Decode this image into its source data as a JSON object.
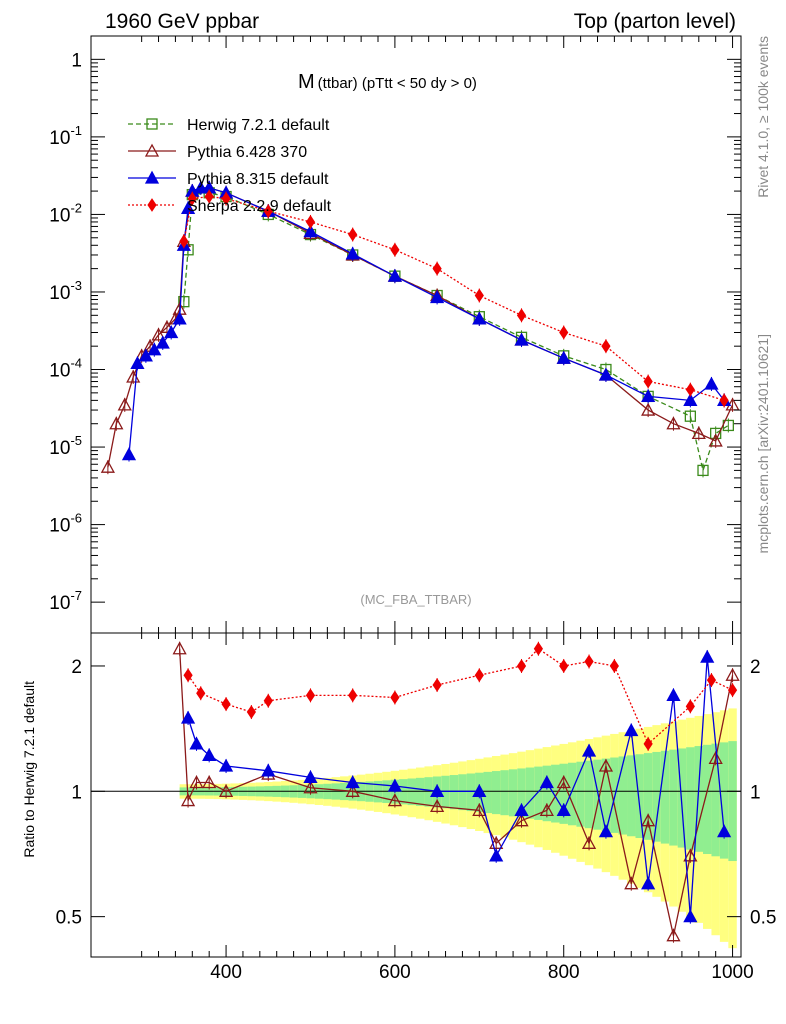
{
  "header": {
    "left": "1960 GeV ppbar",
    "right": "Top (parton level)"
  },
  "side_labels": {
    "rivet": "Rivet 4.1.0, ≥ 100k events",
    "mcplots": "mcplots.cern.ch [arXiv:2401.10621]"
  },
  "chart_data": [
    {
      "type": "line",
      "panel": "main",
      "title_main": "M",
      "title_sub": "(ttbar) (pTtt < 50 dy > 0)",
      "watermark": "(MC_FBA_TTBAR)",
      "yscale": "log",
      "xlim": [
        240,
        1010
      ],
      "ylim": [
        4e-08,
        2
      ],
      "y_ticks": [
        {
          "value": 1,
          "label": "1"
        },
        {
          "value": 0.1,
          "label": "10^-1"
        },
        {
          "value": 0.01,
          "label": "10^-2"
        },
        {
          "value": 0.001,
          "label": "10^-3"
        },
        {
          "value": 0.0001,
          "label": "10^-4"
        },
        {
          "value": 1e-05,
          "label": "10^-5"
        },
        {
          "value": 1e-06,
          "label": "10^-6"
        },
        {
          "value": 1e-07,
          "label": "10^-7"
        }
      ],
      "legend_position": "top-left",
      "series": [
        {
          "name": "Herwig 7.2.1 default",
          "color": "#3a8a1a",
          "marker": "open-square",
          "line": "dashed",
          "x": [
            350,
            355,
            360,
            380,
            400,
            450,
            500,
            550,
            600,
            650,
            700,
            750,
            800,
            850,
            900,
            950,
            965,
            980,
            995
          ],
          "y": [
            0.00075,
            0.0035,
            0.018,
            0.019,
            0.017,
            0.01,
            0.0055,
            0.003,
            0.0016,
            0.0009,
            0.00048,
            0.00026,
            0.00015,
            0.0001,
            4.5e-05,
            2.5e-05,
            5e-06,
            1.5e-05,
            1.9e-05
          ]
        },
        {
          "name": "Pythia 6.428 370",
          "color": "#8b1a1a",
          "marker": "open-triangle",
          "line": "solid",
          "x": [
            260,
            270,
            280,
            290,
            300,
            310,
            320,
            330,
            340,
            345,
            350,
            360,
            380,
            400,
            450,
            500,
            550,
            600,
            650,
            700,
            750,
            800,
            850,
            900,
            930,
            960,
            980,
            1000
          ],
          "y": [
            5.5e-06,
            2e-05,
            3.5e-05,
            8e-05,
            0.00015,
            0.0002,
            0.00028,
            0.00035,
            0.00045,
            0.0006,
            0.0045,
            0.02,
            0.022,
            0.019,
            0.011,
            0.0057,
            0.003,
            0.0016,
            0.0009,
            0.00045,
            0.00024,
            0.00014,
            8.5e-05,
            3e-05,
            2e-05,
            1.5e-05,
            1.2e-05,
            3.5e-05
          ]
        },
        {
          "name": "Pythia 8.315 default",
          "color": "#0000dd",
          "marker": "filled-triangle",
          "line": "solid",
          "x": [
            285,
            295,
            305,
            315,
            325,
            335,
            345,
            350,
            355,
            360,
            370,
            380,
            400,
            450,
            500,
            550,
            600,
            650,
            700,
            750,
            800,
            850,
            900,
            950,
            975,
            990
          ],
          "y": [
            8e-06,
            0.00012,
            0.00015,
            0.00018,
            0.00022,
            0.0003,
            0.00045,
            0.004,
            0.012,
            0.02,
            0.022,
            0.022,
            0.019,
            0.011,
            0.006,
            0.0031,
            0.0016,
            0.00085,
            0.00045,
            0.00024,
            0.00014,
            8.5e-05,
            4.5e-05,
            4e-05,
            6.5e-05,
            4e-05
          ]
        },
        {
          "name": "Sherpa 2.2.9 default",
          "color": "#ee0000",
          "marker": "filled-diamond",
          "line": "dotted",
          "x": [
            350,
            360,
            380,
            400,
            450,
            500,
            550,
            600,
            650,
            700,
            750,
            800,
            850,
            900,
            950,
            990
          ],
          "y": [
            0.0045,
            0.016,
            0.017,
            0.016,
            0.011,
            0.008,
            0.0055,
            0.0035,
            0.002,
            0.0009,
            0.0005,
            0.0003,
            0.0002,
            7e-05,
            5.5e-05,
            4e-05
          ]
        }
      ]
    },
    {
      "type": "line",
      "panel": "ratio",
      "ylabel": "Ratio to Herwig 7.2.1 default",
      "xlim": [
        240,
        1010
      ],
      "ylim": [
        0.4,
        2.4
      ],
      "x_ticks": [
        400,
        600,
        800,
        1000
      ],
      "y_ticks": [
        {
          "value": 0.5,
          "label": "0.5"
        },
        {
          "value": 1,
          "label": "1"
        },
        {
          "value": 2,
          "label": "2"
        }
      ],
      "reference_line": 1,
      "series": [
        {
          "name": "Pythia 6.428 370",
          "color": "#8b1a1a",
          "marker": "open-triangle",
          "line": "solid",
          "x": [
            345,
            355,
            365,
            380,
            400,
            450,
            500,
            550,
            600,
            650,
            700,
            720,
            750,
            780,
            800,
            830,
            850,
            880,
            900,
            930,
            950,
            980,
            1000
          ],
          "y": [
            2.2,
            0.95,
            1.05,
            1.05,
            1.0,
            1.1,
            1.02,
            1.0,
            0.95,
            0.92,
            0.9,
            0.75,
            0.85,
            0.9,
            1.05,
            0.75,
            1.15,
            0.6,
            0.85,
            0.45,
            0.7,
            1.2,
            1.9
          ]
        },
        {
          "name": "Pythia 8.315 default",
          "color": "#0000dd",
          "marker": "filled-triangle",
          "line": "solid",
          "x": [
            355,
            365,
            380,
            400,
            450,
            500,
            550,
            600,
            650,
            700,
            720,
            750,
            780,
            800,
            830,
            850,
            880,
            900,
            930,
            950,
            970,
            990
          ],
          "y": [
            1.5,
            1.3,
            1.22,
            1.15,
            1.12,
            1.08,
            1.05,
            1.03,
            1.0,
            1.0,
            0.7,
            0.9,
            1.05,
            0.9,
            1.25,
            0.8,
            1.4,
            0.6,
            1.7,
            0.5,
            2.1,
            0.8
          ]
        },
        {
          "name": "Sherpa 2.2.9 default",
          "color": "#ee0000",
          "marker": "filled-diamond",
          "line": "dotted",
          "x": [
            355,
            370,
            400,
            430,
            450,
            500,
            550,
            600,
            650,
            700,
            750,
            770,
            800,
            830,
            860,
            900,
            950,
            975,
            1000
          ],
          "y": [
            1.9,
            1.72,
            1.62,
            1.55,
            1.65,
            1.7,
            1.7,
            1.68,
            1.8,
            1.9,
            2.0,
            2.2,
            2.0,
            2.05,
            2.0,
            1.3,
            1.6,
            1.85,
            1.75
          ]
        }
      ]
    }
  ]
}
